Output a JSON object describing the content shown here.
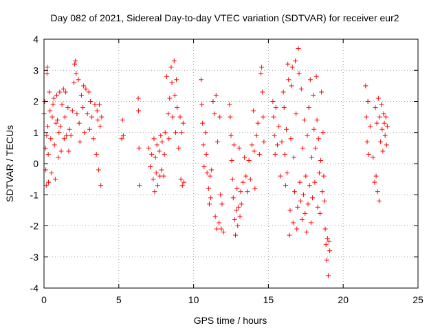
{
  "chart_data": {
    "type": "scatter",
    "title": "Day 082 of 2021, Sidereal Day-to-day VTEC variation (SDTVAR) for receiver eur2",
    "xlabel": "GPS time / hours",
    "ylabel": "SDTVAR / TECUs",
    "xlim": [
      0,
      25
    ],
    "ylim": [
      -4,
      4
    ],
    "x_ticks": [
      "0",
      "5",
      "10",
      "15",
      "20",
      "25"
    ],
    "y_ticks": [
      "-4",
      "-3",
      "-2",
      "-1",
      "0",
      "1",
      "2",
      "3",
      "4"
    ],
    "grid": true,
    "marker": "+",
    "color": "#ff0000",
    "series": [
      {
        "name": "SDTVAR",
        "points": [
          [
            0.0,
            1.6
          ],
          [
            0.05,
            2.0
          ],
          [
            0.1,
            0.5
          ],
          [
            0.12,
            -0.2
          ],
          [
            0.15,
            -0.7
          ],
          [
            0.18,
            0.9
          ],
          [
            0.2,
            2.9
          ],
          [
            0.22,
            3.1
          ],
          [
            0.25,
            1.2
          ],
          [
            0.28,
            0.3
          ],
          [
            0.3,
            -0.6
          ],
          [
            0.35,
            2.3
          ],
          [
            0.4,
            1.7
          ],
          [
            0.45,
            0.8
          ],
          [
            0.5,
            -0.3
          ],
          [
            0.55,
            1.5
          ],
          [
            0.6,
            1.9
          ],
          [
            0.65,
            2.1
          ],
          [
            0.7,
            0.6
          ],
          [
            0.75,
            -0.5
          ],
          [
            0.8,
            1.3
          ],
          [
            0.85,
            2.2
          ],
          [
            0.9,
            1.4
          ],
          [
            0.95,
            0.2
          ],
          [
            1.0,
            1.0
          ],
          [
            1.05,
            2.3
          ],
          [
            1.1,
            1.2
          ],
          [
            1.15,
            0.4
          ],
          [
            1.2,
            1.9
          ],
          [
            1.3,
            2.4
          ],
          [
            1.35,
            0.8
          ],
          [
            1.4,
            1.5
          ],
          [
            1.45,
            2.3
          ],
          [
            1.5,
            0.9
          ],
          [
            1.6,
            1.8
          ],
          [
            1.65,
            0.4
          ],
          [
            1.7,
            1.1
          ],
          [
            1.8,
            0.9
          ],
          [
            1.9,
            1.7
          ],
          [
            2.0,
            2.6
          ],
          [
            2.05,
            3.2
          ],
          [
            2.1,
            3.3
          ],
          [
            2.15,
            2.9
          ],
          [
            2.2,
            1.6
          ],
          [
            2.3,
            2.7
          ],
          [
            2.35,
            1.3
          ],
          [
            2.4,
            0.7
          ],
          [
            2.5,
            2.2
          ],
          [
            2.6,
            1.8
          ],
          [
            2.65,
            2.5
          ],
          [
            2.7,
            1.0
          ],
          [
            2.8,
            2.4
          ],
          [
            2.9,
            1.6
          ],
          [
            3.0,
            2.3
          ],
          [
            3.05,
            1.1
          ],
          [
            3.1,
            2.0
          ],
          [
            3.2,
            1.5
          ],
          [
            3.3,
            0.8
          ],
          [
            3.4,
            1.9
          ],
          [
            3.5,
            0.3
          ],
          [
            3.55,
            1.7
          ],
          [
            3.6,
            1.4
          ],
          [
            3.65,
            -0.2
          ],
          [
            3.7,
            1.9
          ],
          [
            3.75,
            1.2
          ],
          [
            3.8,
            -0.7
          ],
          [
            3.85,
            1.5
          ],
          [
            5.2,
            0.8
          ],
          [
            5.25,
            1.4
          ],
          [
            5.3,
            0.9
          ],
          [
            6.3,
            2.1
          ],
          [
            6.32,
            1.7
          ],
          [
            6.35,
            0.5
          ],
          [
            6.37,
            -0.7
          ],
          [
            7.0,
            0.5
          ],
          [
            7.1,
            -0.1
          ],
          [
            7.2,
            0.3
          ],
          [
            7.3,
            -0.5
          ],
          [
            7.35,
            0.8
          ],
          [
            7.4,
            -0.9
          ],
          [
            7.45,
            0.2
          ],
          [
            7.5,
            -0.3
          ],
          [
            7.55,
            0.6
          ],
          [
            7.6,
            -0.7
          ],
          [
            7.7,
            0.4
          ],
          [
            7.75,
            -0.4
          ],
          [
            7.8,
            0.9
          ],
          [
            7.85,
            -0.2
          ],
          [
            7.9,
            0.7
          ],
          [
            8.0,
            -0.4
          ],
          [
            8.05,
            0.3
          ],
          [
            8.1,
            1.0
          ],
          [
            8.2,
            2.8
          ],
          [
            8.3,
            1.6
          ],
          [
            8.35,
            0.8
          ],
          [
            8.4,
            2.1
          ],
          [
            8.5,
            3.1
          ],
          [
            8.55,
            2.6
          ],
          [
            8.6,
            1.5
          ],
          [
            8.7,
            3.3
          ],
          [
            8.75,
            2.2
          ],
          [
            8.8,
            1.0
          ],
          [
            8.85,
            2.7
          ],
          [
            8.9,
            1.8
          ],
          [
            9.0,
            0.5
          ],
          [
            9.1,
            1.5
          ],
          [
            9.15,
            -0.5
          ],
          [
            9.2,
            1.0
          ],
          [
            9.25,
            -0.7
          ],
          [
            9.3,
            1.3
          ],
          [
            9.35,
            -0.6
          ],
          [
            10.5,
            2.7
          ],
          [
            10.55,
            1.9
          ],
          [
            10.6,
            1.3
          ],
          [
            10.65,
            0.6
          ],
          [
            10.7,
            -0.1
          ],
          [
            10.8,
            1.0
          ],
          [
            10.85,
            0.3
          ],
          [
            10.9,
            -0.3
          ],
          [
            11.0,
            -0.8
          ],
          [
            11.05,
            -1.3
          ],
          [
            11.1,
            -0.4
          ],
          [
            11.15,
            -1.1
          ],
          [
            11.2,
            -0.2
          ],
          [
            11.3,
            2.0
          ],
          [
            11.4,
            1.6
          ],
          [
            11.45,
            -1.7
          ],
          [
            11.5,
            2.2
          ],
          [
            11.55,
            -2.1
          ],
          [
            11.6,
            0.7
          ],
          [
            11.7,
            -1.9
          ],
          [
            11.75,
            1.5
          ],
          [
            11.8,
            -1.0
          ],
          [
            11.85,
            -2.1
          ],
          [
            11.9,
            -1.3
          ],
          [
            12.0,
            -2.2
          ],
          [
            12.4,
            1.9
          ],
          [
            12.45,
            1.5
          ],
          [
            12.5,
            0.9
          ],
          [
            12.55,
            0.1
          ],
          [
            12.6,
            -0.5
          ],
          [
            12.65,
            -1.1
          ],
          [
            12.7,
            0.6
          ],
          [
            12.75,
            -1.8
          ],
          [
            12.8,
            -2.3
          ],
          [
            12.85,
            -1.5
          ],
          [
            12.9,
            -0.8
          ],
          [
            12.95,
            -2.0
          ],
          [
            13.0,
            -1.4
          ],
          [
            13.05,
            0.5
          ],
          [
            13.1,
            -1.7
          ],
          [
            13.15,
            -0.9
          ],
          [
            13.2,
            -1.3
          ],
          [
            13.3,
            -0.6
          ],
          [
            13.4,
            0.2
          ],
          [
            13.5,
            -0.4
          ],
          [
            13.6,
            -0.9
          ],
          [
            13.7,
            0.1
          ],
          [
            13.8,
            -0.5
          ],
          [
            13.9,
            0.6
          ],
          [
            14.0,
            1.7
          ],
          [
            14.05,
            0.4
          ],
          [
            14.1,
            -0.8
          ],
          [
            14.2,
            0.9
          ],
          [
            14.3,
            1.3
          ],
          [
            14.4,
            0.3
          ],
          [
            14.5,
            2.9
          ],
          [
            14.55,
            3.1
          ],
          [
            14.6,
            2.3
          ],
          [
            14.65,
            1.5
          ],
          [
            14.7,
            0.7
          ],
          [
            15.3,
            2.0
          ],
          [
            15.35,
            1.5
          ],
          [
            15.4,
            0.9
          ],
          [
            15.45,
            0.3
          ],
          [
            15.5,
            1.8
          ],
          [
            15.6,
            0.6
          ],
          [
            15.7,
            1.2
          ],
          [
            15.8,
            -0.4
          ],
          [
            15.9,
            0.7
          ],
          [
            16.0,
            2.3
          ],
          [
            16.05,
            1.8
          ],
          [
            16.1,
            0.3
          ],
          [
            16.15,
            -0.7
          ],
          [
            16.2,
            1.1
          ],
          [
            16.25,
            -0.3
          ],
          [
            16.3,
            3.2
          ],
          [
            16.35,
            2.7
          ],
          [
            16.4,
            -2.3
          ],
          [
            16.45,
            -1.5
          ],
          [
            16.5,
            0.8
          ],
          [
            16.55,
            2.5
          ],
          [
            16.6,
            3.1
          ],
          [
            16.65,
            -1.9
          ],
          [
            16.7,
            0.2
          ],
          [
            16.75,
            -0.9
          ],
          [
            16.8,
            3.3
          ],
          [
            16.85,
            1.6
          ],
          [
            16.9,
            -2.1
          ],
          [
            16.95,
            -1.4
          ],
          [
            17.0,
            3.7
          ],
          [
            17.05,
            2.9
          ],
          [
            17.1,
            -0.6
          ],
          [
            17.15,
            -1.2
          ],
          [
            17.2,
            2.4
          ],
          [
            17.25,
            -1.8
          ],
          [
            17.3,
            0.5
          ],
          [
            17.35,
            -1.0
          ],
          [
            17.4,
            1.4
          ],
          [
            17.45,
            -1.6
          ],
          [
            17.5,
            -0.4
          ],
          [
            17.55,
            -2.2
          ],
          [
            17.6,
            0.9
          ],
          [
            17.65,
            -1.3
          ],
          [
            17.7,
            1.8
          ],
          [
            17.75,
            -0.7
          ],
          [
            17.8,
            2.7
          ],
          [
            17.85,
            -1.9
          ],
          [
            17.9,
            0.2
          ],
          [
            17.95,
            -1.1
          ],
          [
            18.0,
            2.2
          ],
          [
            18.05,
            1.1
          ],
          [
            18.1,
            -0.6
          ],
          [
            18.15,
            0.5
          ],
          [
            18.2,
            2.8
          ],
          [
            18.25,
            1.4
          ],
          [
            18.3,
            -1.4
          ],
          [
            18.35,
            0.8
          ],
          [
            18.4,
            -0.3
          ],
          [
            18.45,
            -1.6
          ],
          [
            18.5,
            0.1
          ],
          [
            18.55,
            2.3
          ],
          [
            18.6,
            -0.9
          ],
          [
            18.65,
            1.0
          ],
          [
            18.7,
            -0.4
          ],
          [
            18.75,
            -1.2
          ],
          [
            18.8,
            -2.1
          ],
          [
            18.85,
            -2.6
          ],
          [
            18.9,
            -3.1
          ],
          [
            18.95,
            -2.4
          ],
          [
            19.0,
            -3.6
          ],
          [
            19.05,
            -2.5
          ],
          [
            19.1,
            -2.8
          ],
          [
            21.5,
            2.5
          ],
          [
            21.55,
            1.5
          ],
          [
            21.6,
            0.7
          ],
          [
            21.65,
            2.0
          ],
          [
            21.7,
            0.3
          ],
          [
            21.8,
            1.2
          ],
          [
            22.0,
            0.2
          ],
          [
            22.1,
            -0.6
          ],
          [
            22.15,
            1.8
          ],
          [
            22.2,
            -0.4
          ],
          [
            22.25,
            1.3
          ],
          [
            22.3,
            -0.9
          ],
          [
            22.35,
            2.1
          ],
          [
            22.4,
            -1.2
          ],
          [
            22.45,
            1.5
          ],
          [
            22.5,
            0.7
          ],
          [
            22.55,
            1.9
          ],
          [
            22.6,
            1.1
          ],
          [
            22.65,
            0.4
          ],
          [
            22.7,
            1.6
          ],
          [
            22.75,
            1.3
          ],
          [
            22.8,
            0.9
          ],
          [
            22.85,
            1.5
          ],
          [
            22.9,
            0.6
          ],
          [
            22.95,
            1.2
          ]
        ]
      }
    ]
  }
}
